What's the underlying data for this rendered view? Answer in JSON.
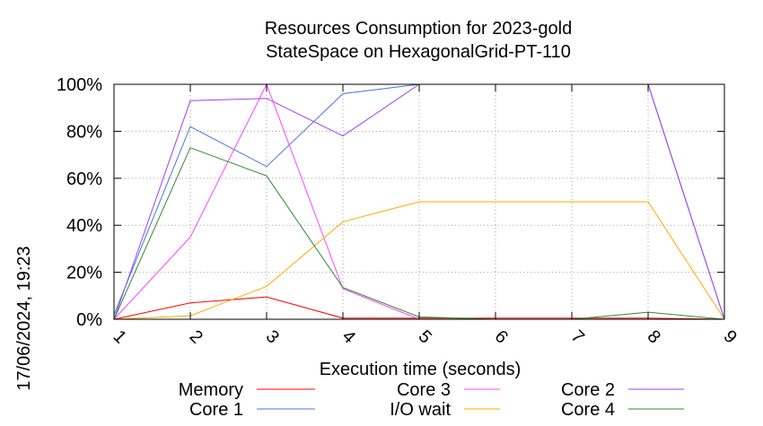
{
  "chart_data": {
    "type": "line",
    "title_line1": "Resources Consumption for 2023-gold",
    "title_line2": "StateSpace on HexagonalGrid-PT-110",
    "xlabel": "Execution time (seconds)",
    "ylabel": "",
    "timestamp": "17/06/2024, 19:23",
    "x": [
      1,
      2,
      3,
      4,
      5,
      6,
      7,
      8,
      9
    ],
    "x_tick_labels": [
      "1",
      "2",
      "3",
      "4",
      "5",
      "6",
      "7",
      "8",
      "9"
    ],
    "xlim": [
      1,
      9
    ],
    "ylim": [
      0,
      100
    ],
    "y_ticks": [
      0,
      20,
      40,
      60,
      80,
      100
    ],
    "y_tick_labels": [
      "0%",
      "20%",
      "40%",
      "60%",
      "80%",
      "100%"
    ],
    "grid": true,
    "legend_position": "bottom",
    "series": [
      {
        "name": "Memory",
        "color": "#ff0000",
        "values": [
          0,
          7,
          9.5,
          0.5,
          0.5,
          0.5,
          0.5,
          0.5,
          0
        ]
      },
      {
        "name": "Core 1",
        "color": "#4a74e0",
        "values": [
          2,
          82,
          65,
          96,
          100,
          100,
          100,
          100,
          0
        ]
      },
      {
        "name": "Core 3",
        "color": "#ff44ff",
        "values": [
          0,
          35,
          100,
          13,
          0,
          0,
          0,
          0,
          0
        ]
      },
      {
        "name": "I/O wait",
        "color": "#ffaa00",
        "values": [
          0,
          1.5,
          14,
          41.5,
          50,
          50,
          50,
          50,
          0
        ]
      },
      {
        "name": "Core 2",
        "color": "#a040f0",
        "values": [
          0,
          93,
          94,
          78,
          100,
          100,
          100,
          100,
          0
        ]
      },
      {
        "name": "Core 4",
        "color": "#2e8b2e",
        "values": [
          0,
          73,
          61,
          13.5,
          1,
          0,
          0,
          3,
          0
        ]
      }
    ]
  }
}
